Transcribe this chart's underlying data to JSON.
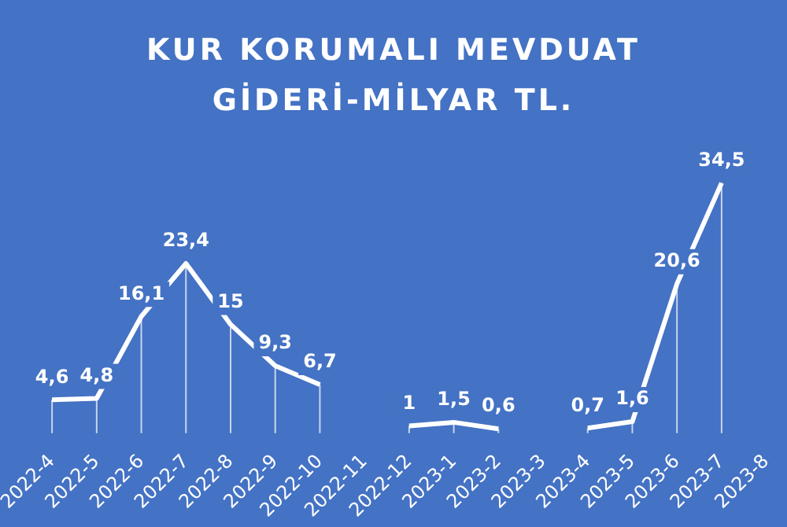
{
  "chart_data": {
    "type": "line",
    "title": "KUR KORUMALI MEVDUAT GİDERİ-MİLYAR TL.",
    "categories": [
      "2022-4",
      "2022-5",
      "2022-6",
      "2022-7",
      "2022-8",
      "2022-9",
      "2022-10",
      "2022-11",
      "2022-12",
      "2023-1",
      "2023-2",
      "2023-3",
      "2023-4",
      "2023-5",
      "2023-6",
      "2023-7",
      "2023-8"
    ],
    "series": [
      {
        "color": "#ffffff",
        "values": [
          4.6,
          4.8,
          16.1,
          23.4,
          15,
          9.3,
          6.7,
          null,
          1,
          1.5,
          0.6,
          null,
          0.7,
          1.6,
          20.6,
          34.5,
          null
        ],
        "value_labels": [
          "4,6",
          "4,8",
          "16,1",
          "23,4",
          "15",
          "9,3",
          "6,7",
          null,
          "1",
          "1,5",
          "0,6",
          null,
          "0,7",
          "1,6",
          "20,6",
          "34,5",
          null
        ]
      }
    ],
    "grid": "x",
    "legend": false,
    "marker": "none",
    "line_style": "solid"
  }
}
